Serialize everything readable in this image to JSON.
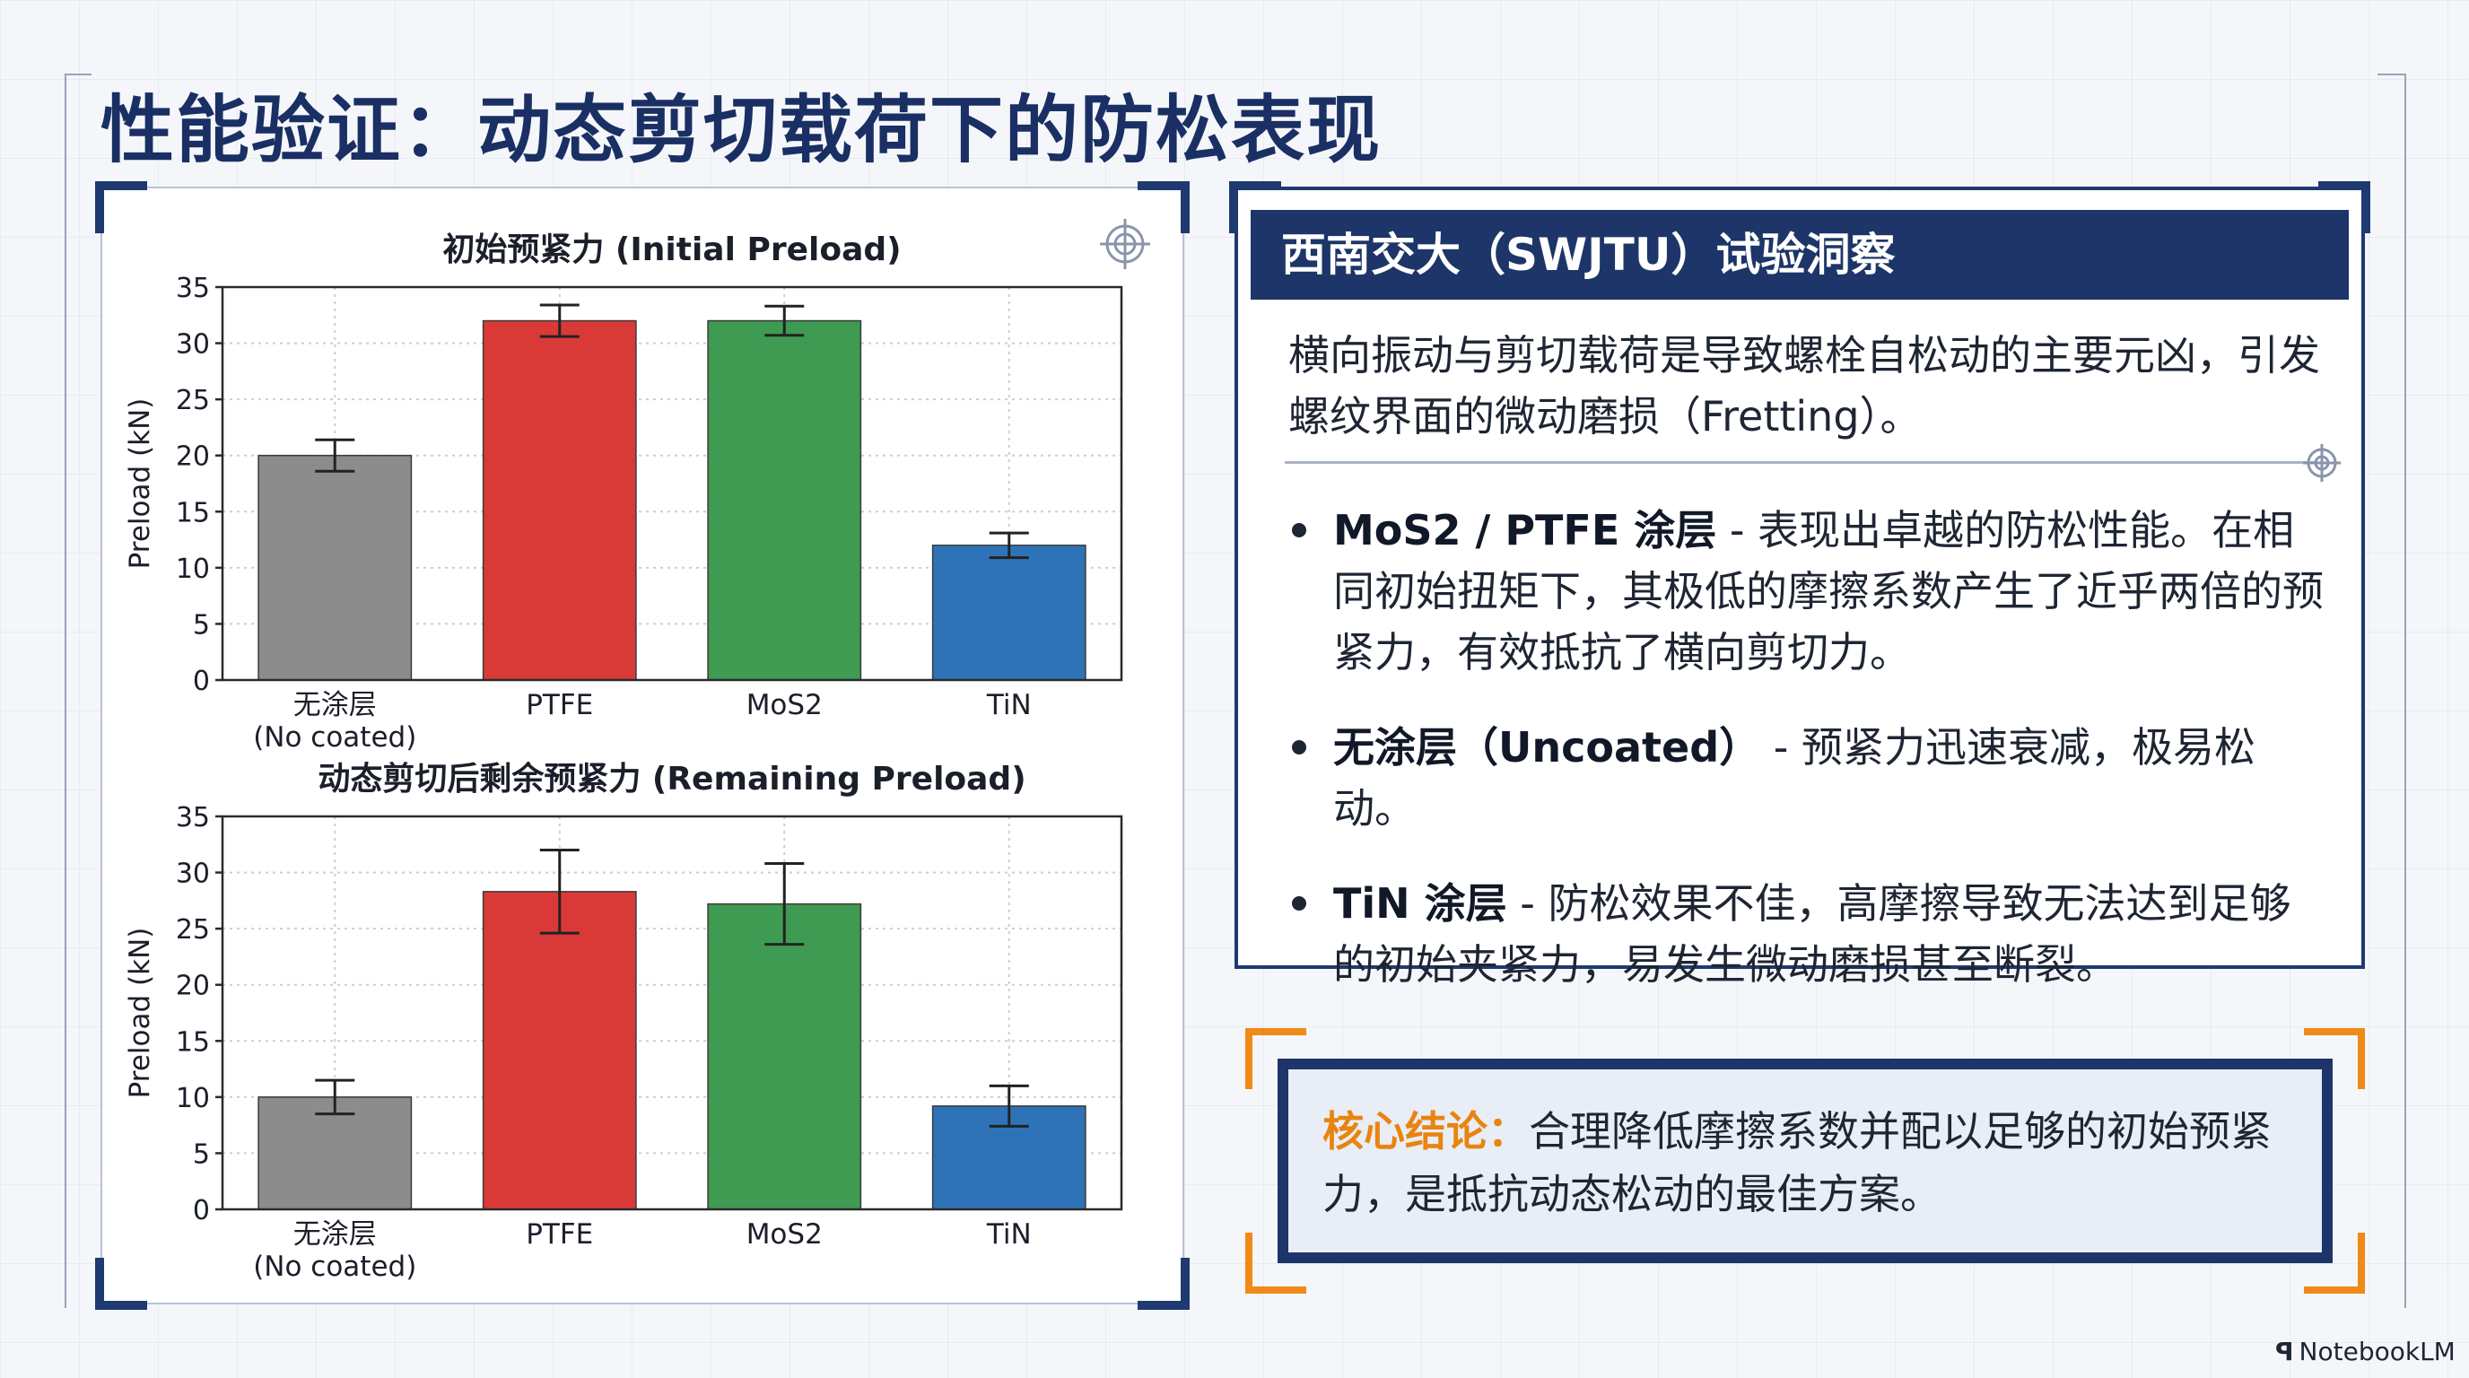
{
  "page_title": "性能验证：动态剪切载荷下的防松表现",
  "chart_data": [
    {
      "type": "bar",
      "title": "初始预紧力 (Initial Preload)",
      "ylabel": "Preload (kN)",
      "categories": [
        "无涂层\n(No coated)",
        "PTFE",
        "MoS2",
        "TiN"
      ],
      "values": [
        20,
        32,
        32,
        12
      ],
      "errors": [
        1.4,
        1.4,
        1.3,
        1.1
      ],
      "colors": [
        "#8c8c8c",
        "#d93a37",
        "#3f9b52",
        "#2e73b7"
      ],
      "ylim": [
        0,
        35
      ],
      "yticks": [
        0,
        5,
        10,
        15,
        20,
        25,
        30,
        35
      ],
      "grid": true
    },
    {
      "type": "bar",
      "title": "动态剪切后剩余预紧力 (Remaining Preload)",
      "ylabel": "Preload (kN)",
      "categories": [
        "无涂层\n(No coated)",
        "PTFE",
        "MoS2",
        "TiN"
      ],
      "values": [
        10,
        28.3,
        27.2,
        9.2
      ],
      "errors": [
        1.5,
        3.7,
        3.6,
        1.8
      ],
      "colors": [
        "#8c8c8c",
        "#d93a37",
        "#3f9b52",
        "#2e73b7"
      ],
      "ylim": [
        0,
        35
      ],
      "yticks": [
        0,
        5,
        10,
        15,
        20,
        25,
        30,
        35
      ],
      "grid": true
    }
  ],
  "insight": {
    "header": "西南交大（SWJTU）试验洞察",
    "intro": "横向振动与剪切载荷是导致螺栓自松动的主要元凶，引发螺纹界面的微动磨损（Fretting）。",
    "bullets": [
      {
        "label": "MoS2 / PTFE 涂层",
        "text": " - 表现出卓越的防松性能。在相同初始扭矩下，其极低的摩擦系数产生了近乎两倍的预紧力，有效抵抗了横向剪切力。"
      },
      {
        "label": "无涂层（Uncoated）",
        "text": " - 预紧力迅速衰减，极易松动。"
      },
      {
        "label": "TiN 涂层",
        "text": " - 防松效果不佳，高摩擦导致无法达到足够的初始夹紧力，易发生微动磨损甚至断裂。"
      }
    ]
  },
  "conclusion": {
    "label": "核心结论：",
    "text": "合理降低摩擦系数并配以足够的初始预紧力，是抵抗动态松动的最佳方案。"
  },
  "brand": {
    "logo": "ꟼ",
    "name": "NotebookLM"
  }
}
